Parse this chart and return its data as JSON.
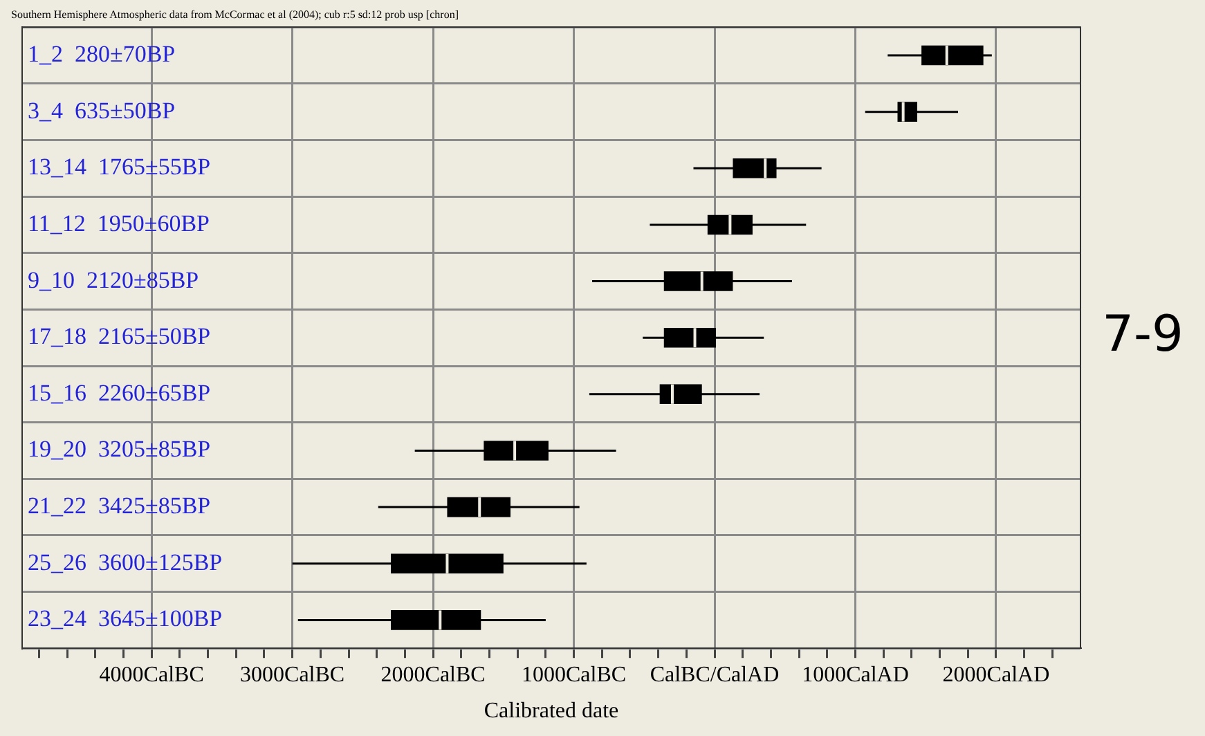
{
  "chart_data": {
    "type": "box",
    "orientation": "horizontal",
    "title": "Southern Hemisphere Atmospheric data from McCormac et al (2004); cub r:5 sd:12 prob usp [chron]",
    "xlabel": "Calibrated date",
    "annotations": [
      "7-9"
    ],
    "categories": [
      "1_2  280±70BP",
      "3_4  635±50BP",
      "13_14  1765±55BP",
      "11_12  1950±60BP",
      "9_10  2120±85BP",
      "17_18  2165±50BP",
      "15_16  2260±65BP",
      "19_20  3205±85BP",
      "21_22  3425±85BP",
      "25_26  3600±125BP",
      "23_24  3645±100BP"
    ],
    "color": "#000000",
    "boxes": [
      {
        "low": 1230,
        "q1": 1470,
        "median": 1650,
        "q3": 1910,
        "high": 1970
      },
      {
        "low": 1070,
        "q1": 1300,
        "median": 1340,
        "q3": 1440,
        "high": 1730
      },
      {
        "low": -150,
        "q1": 130,
        "median": 360,
        "q3": 440,
        "high": 760
      },
      {
        "low": -460,
        "q1": -50,
        "median": 110,
        "q3": 270,
        "high": 650
      },
      {
        "low": -870,
        "q1": -360,
        "median": -90,
        "q3": 130,
        "high": 550
      },
      {
        "low": -510,
        "q1": -360,
        "median": -140,
        "q3": 10,
        "high": 350
      },
      {
        "low": -890,
        "q1": -390,
        "median": -300,
        "q3": -90,
        "high": 320
      },
      {
        "low": -2130,
        "q1": -1640,
        "median": -1420,
        "q3": -1180,
        "high": -700
      },
      {
        "low": -2390,
        "q1": -1900,
        "median": -1670,
        "q3": -1450,
        "high": -960
      },
      {
        "low": -3000,
        "q1": -2300,
        "median": -1900,
        "q3": -1500,
        "high": -910
      },
      {
        "low": -2960,
        "q1": -2300,
        "median": -1950,
        "q3": -1660,
        "high": -1200
      }
    ],
    "xlim": [
      -4920,
      2600
    ],
    "xticks": [
      {
        "value": -4800,
        "label": null
      },
      {
        "value": -4600,
        "label": null
      },
      {
        "value": -4400,
        "label": null
      },
      {
        "value": -4200,
        "label": null
      },
      {
        "value": -4000,
        "label": "4000CalBC"
      },
      {
        "value": -3800,
        "label": null
      },
      {
        "value": -3600,
        "label": null
      },
      {
        "value": -3400,
        "label": null
      },
      {
        "value": -3200,
        "label": null
      },
      {
        "value": -3000,
        "label": "3000CalBC"
      },
      {
        "value": -2800,
        "label": null
      },
      {
        "value": -2600,
        "label": null
      },
      {
        "value": -2400,
        "label": null
      },
      {
        "value": -2200,
        "label": null
      },
      {
        "value": -2000,
        "label": "2000CalBC"
      },
      {
        "value": -1800,
        "label": null
      },
      {
        "value": -1600,
        "label": null
      },
      {
        "value": -1400,
        "label": null
      },
      {
        "value": -1200,
        "label": null
      },
      {
        "value": -1000,
        "label": "1000CalBC"
      },
      {
        "value": -800,
        "label": null
      },
      {
        "value": -600,
        "label": null
      },
      {
        "value": -400,
        "label": null
      },
      {
        "value": -200,
        "label": null
      },
      {
        "value": 0,
        "label": "CalBC/CalAD"
      },
      {
        "value": 200,
        "label": null
      },
      {
        "value": 400,
        "label": null
      },
      {
        "value": 600,
        "label": null
      },
      {
        "value": 800,
        "label": null
      },
      {
        "value": 1000,
        "label": "1000CalAD"
      },
      {
        "value": 1200,
        "label": null
      },
      {
        "value": 1400,
        "label": null
      },
      {
        "value": 1600,
        "label": null
      },
      {
        "value": 1800,
        "label": null
      },
      {
        "value": 2000,
        "label": "2000CalAD"
      },
      {
        "value": 2200,
        "label": null
      },
      {
        "value": 2400,
        "label": null
      }
    ],
    "grid": true,
    "legend": false
  }
}
